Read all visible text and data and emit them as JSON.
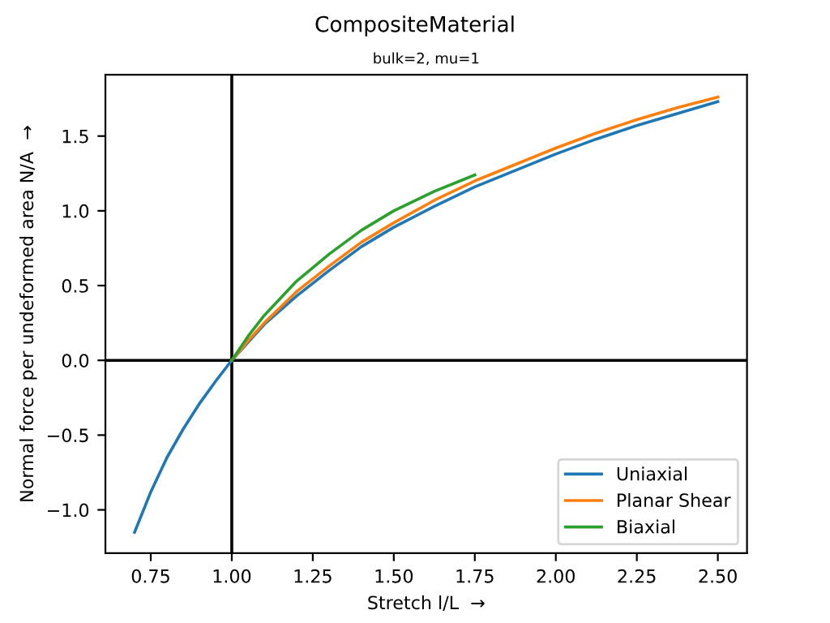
{
  "chart_data": {
    "type": "line",
    "title": "CompositeMaterial",
    "subtitle": "bulk=2, mu=1",
    "xlabel": "Stretch l/L  →",
    "ylabel": "Normal force per undeformed area N/A  →",
    "series": [
      {
        "name": "Uniaxial",
        "color": "#1f77b4",
        "x": [
          0.7,
          0.75,
          0.8,
          0.85,
          0.9,
          0.95,
          1.0,
          1.05,
          1.1,
          1.2,
          1.3,
          1.4,
          1.5,
          1.625,
          1.75,
          1.875,
          2.0,
          2.125,
          2.25,
          2.375,
          2.5
        ],
        "values": [
          -1.15,
          -0.88,
          -0.65,
          -0.46,
          -0.29,
          -0.14,
          0.0,
          0.12,
          0.24,
          0.43,
          0.6,
          0.76,
          0.89,
          1.03,
          1.16,
          1.27,
          1.38,
          1.48,
          1.57,
          1.65,
          1.73
        ]
      },
      {
        "name": "Planar Shear",
        "color": "#ff7f0e",
        "x": [
          1.0,
          1.05,
          1.1,
          1.2,
          1.3,
          1.4,
          1.5,
          1.625,
          1.75,
          1.875,
          2.0,
          2.125,
          2.25,
          2.375,
          2.5
        ],
        "values": [
          0.0,
          0.13,
          0.25,
          0.46,
          0.63,
          0.79,
          0.92,
          1.07,
          1.2,
          1.31,
          1.42,
          1.52,
          1.61,
          1.69,
          1.76
        ]
      },
      {
        "name": "Biaxial",
        "color": "#2ca02c",
        "x": [
          1.0,
          1.05,
          1.1,
          1.2,
          1.3,
          1.4,
          1.5,
          1.625,
          1.75
        ],
        "values": [
          0.0,
          0.16,
          0.3,
          0.53,
          0.71,
          0.87,
          1.0,
          1.13,
          1.24
        ]
      }
    ],
    "xlim": [
      0.61,
      2.59
    ],
    "ylim": [
      -1.29,
      1.91
    ],
    "xticks": [
      {
        "value": 0.75,
        "label": "0.75"
      },
      {
        "value": 1.0,
        "label": "1.00"
      },
      {
        "value": 1.25,
        "label": "1.25"
      },
      {
        "value": 1.5,
        "label": "1.50"
      },
      {
        "value": 1.75,
        "label": "1.75"
      },
      {
        "value": 2.0,
        "label": "2.00"
      },
      {
        "value": 2.25,
        "label": "2.25"
      },
      {
        "value": 2.5,
        "label": "2.50"
      }
    ],
    "yticks": [
      {
        "value": -1.0,
        "label": "−1.0"
      },
      {
        "value": -0.5,
        "label": "−0.5"
      },
      {
        "value": 0.0,
        "label": "0.0"
      },
      {
        "value": 0.5,
        "label": "0.5"
      },
      {
        "value": 1.0,
        "label": "1.0"
      },
      {
        "value": 1.5,
        "label": "1.5"
      }
    ],
    "ref_lines": [
      {
        "axis": "x",
        "value": 1.0,
        "color": "#000000"
      },
      {
        "axis": "y",
        "value": 0.0,
        "color": "#000000"
      }
    ],
    "legend": "lower right",
    "grid": false,
    "marker": "none",
    "line_style": "solid"
  }
}
